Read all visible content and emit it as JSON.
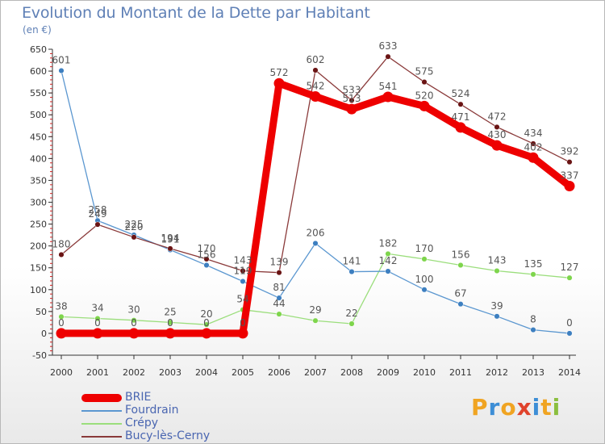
{
  "title": "Evolution du Montant de la Dette par Habitant",
  "subtitle": "(en €)",
  "logo": {
    "letters": [
      "P",
      "r",
      "o",
      "x",
      "i",
      "t",
      "i"
    ],
    "colors": [
      "#f0a422",
      "#3d8ed6",
      "#f0a422",
      "#e0432c",
      "#3d8ed6",
      "#f0a422",
      "#8bbf3f"
    ]
  },
  "chart_data": {
    "type": "line",
    "title": "Evolution du Montant de la Dette par Habitant",
    "ylabel": "(en €)",
    "ylim": [
      -50,
      650
    ],
    "yticks": [
      -50,
      0,
      50,
      100,
      150,
      200,
      250,
      300,
      350,
      400,
      450,
      500,
      550,
      600,
      650
    ],
    "x": [
      "2000",
      "2001",
      "2002",
      "2003",
      "2004",
      "2005",
      "2006",
      "2007",
      "2008",
      "2009",
      "2010",
      "2011",
      "2012",
      "2013",
      "2014"
    ],
    "grid": false,
    "legend_position": "bottom-left",
    "series": [
      {
        "name": "BRIE",
        "color": "#ee0000",
        "point_color": "#ee0000",
        "values": [
          0,
          0,
          0,
          0,
          0,
          0,
          572,
          542,
          513,
          541,
          520,
          471,
          430,
          402,
          337
        ],
        "labels": [
          "0",
          "0",
          "0",
          "0",
          "0",
          "0",
          "572",
          "542",
          "513",
          "541",
          "520",
          "471",
          "430",
          "402",
          "337"
        ]
      },
      {
        "name": "Fourdrain",
        "color": "#5b97d0",
        "point_color": "#3d7fc0",
        "values": [
          601,
          258,
          225,
          191,
          156,
          119,
          81,
          206,
          141,
          142,
          100,
          67,
          39,
          8,
          0
        ],
        "labels": [
          "601",
          "258",
          "225",
          "191",
          "156",
          "119",
          "81",
          "206",
          "141",
          "142",
          "100",
          "67",
          "39",
          "8",
          "0"
        ]
      },
      {
        "name": "Crépy",
        "color": "#9bde7c",
        "point_color": "#7ed54c",
        "values": [
          38,
          34,
          30,
          25,
          20,
          54,
          44,
          29,
          22,
          182,
          170,
          156,
          143,
          135,
          127
        ],
        "labels": [
          "38",
          "34",
          "30",
          "25",
          "20",
          "54",
          "44",
          "29",
          "22",
          "182",
          "170",
          "156",
          "143",
          "135",
          "127"
        ]
      },
      {
        "name": "Bucy-lès-Cerny",
        "color": "#8a3a3a",
        "point_color": "#6a1414",
        "values": [
          180,
          249,
          220,
          194,
          170,
          143,
          139,
          602,
          533,
          633,
          575,
          524,
          472,
          434,
          392
        ],
        "labels": [
          "180",
          "249",
          "220",
          "194",
          "170",
          "143",
          "139",
          "602",
          "533",
          "633",
          "575",
          "524",
          "472",
          "434",
          "392"
        ]
      }
    ]
  }
}
